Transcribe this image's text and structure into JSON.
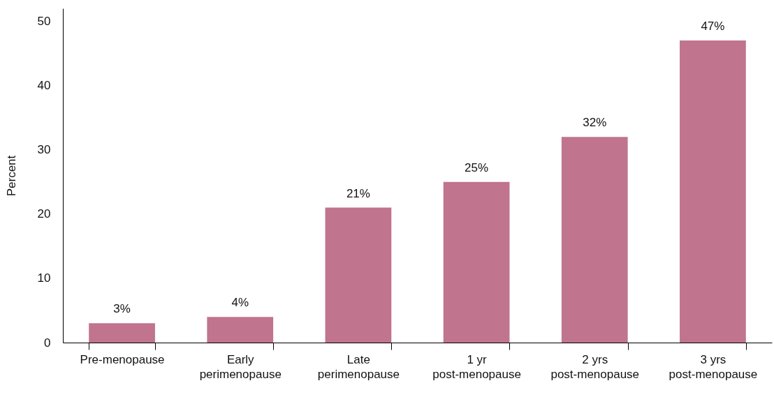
{
  "chart_data": {
    "type": "bar",
    "ylabel": "Percent",
    "categories": [
      "Pre-menopause",
      "Early perimenopause",
      "Late perimenopause",
      "1 yr post-menopause",
      "2 yrs post-menopause",
      "3 yrs post-menopause"
    ],
    "values": [
      3,
      4,
      21,
      25,
      32,
      47
    ],
    "value_labels": [
      "3%",
      "4%",
      "21%",
      "25%",
      "32%",
      "47%"
    ],
    "color": "#c0748e",
    "ylim": [
      0,
      52
    ],
    "yticks": [
      0,
      10,
      20,
      30,
      40,
      50
    ],
    "grid": false
  }
}
